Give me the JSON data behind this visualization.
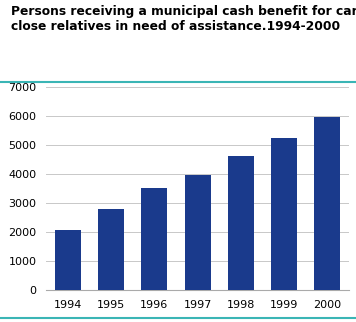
{
  "title_line1": "Persons receiving a municipal cash benefit for care for",
  "title_line2": "close relatives in need of assistance.1994-2000",
  "categories": [
    "1994",
    "1995",
    "1996",
    "1997",
    "1998",
    "1999",
    "2000"
  ],
  "values": [
    2050,
    2800,
    3500,
    3950,
    4600,
    5250,
    5950
  ],
  "bar_color": "#1a3a8c",
  "ylim": [
    0,
    7000
  ],
  "yticks": [
    0,
    1000,
    2000,
    3000,
    4000,
    5000,
    6000,
    7000
  ],
  "grid_color": "#c8c8c8",
  "title_color": "#000000",
  "title_fontsize": 8.8,
  "tick_fontsize": 8.0,
  "bg_color": "#ffffff",
  "teal_color": "#3ab5b5"
}
